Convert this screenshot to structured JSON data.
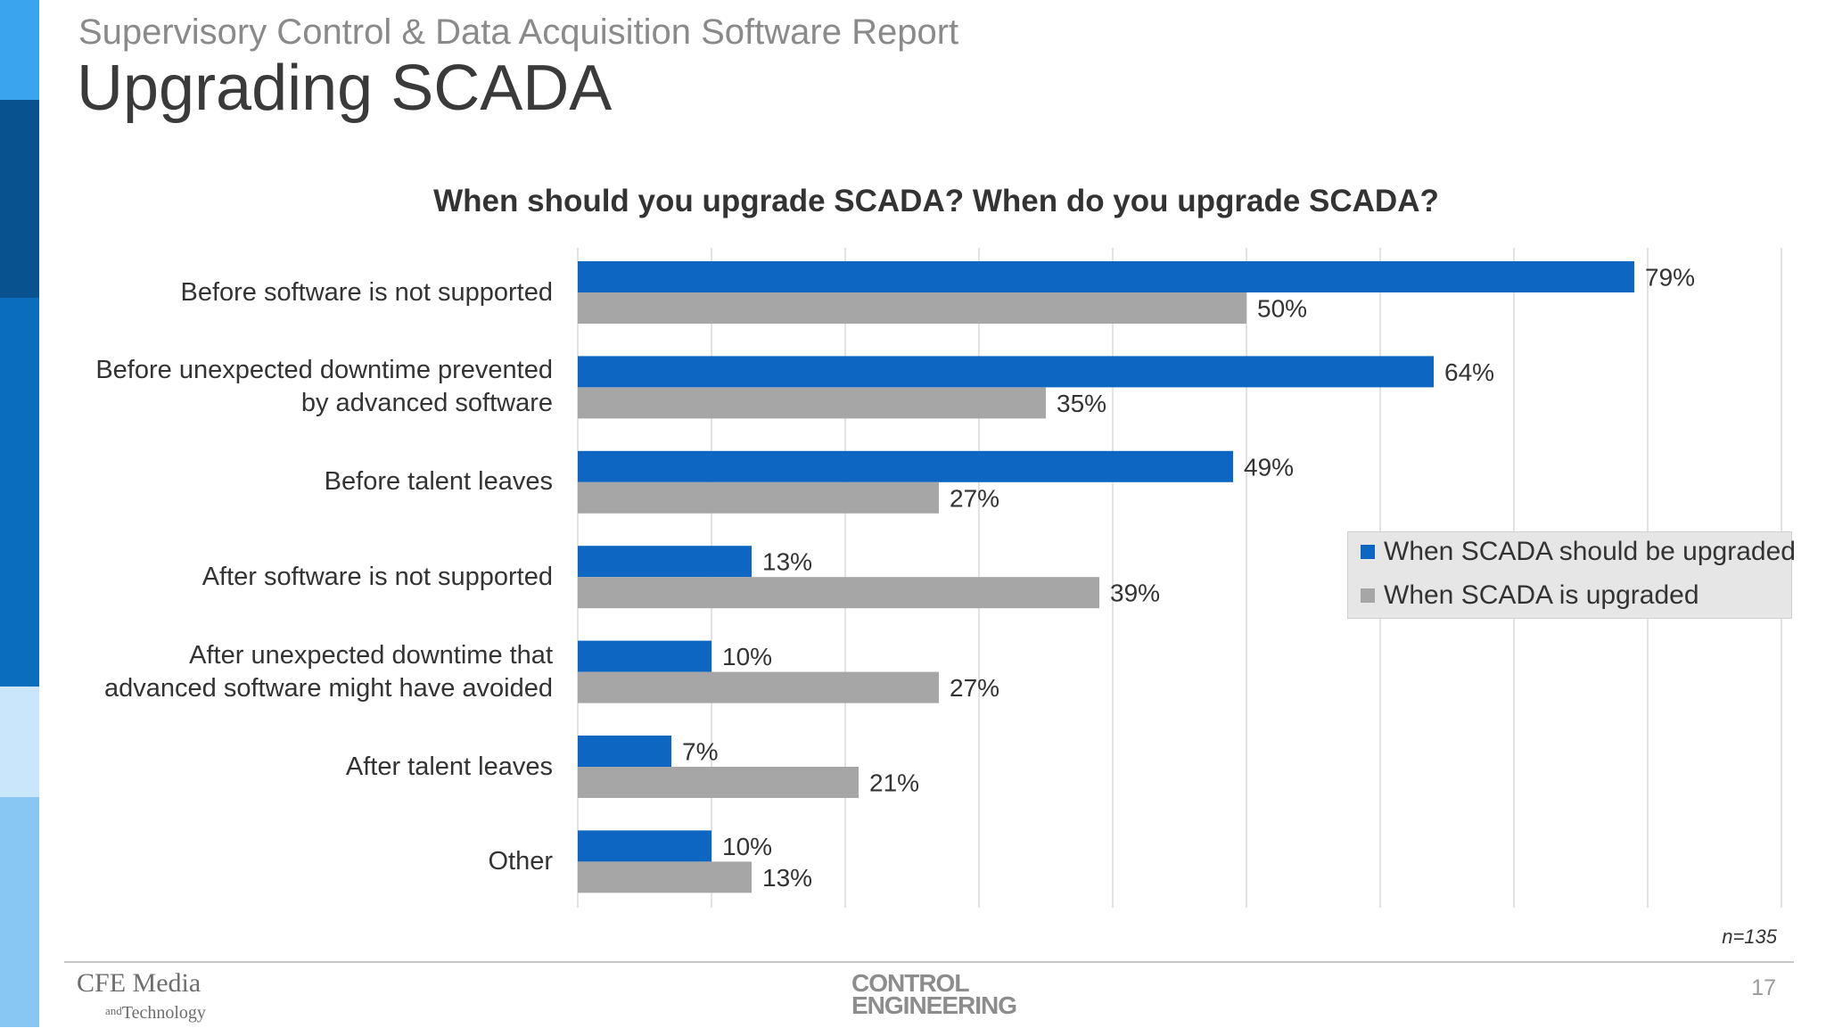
{
  "header": {
    "supertitle": "Supervisory Control & Data Acquisition Software Report",
    "title": "Upgrading SCADA"
  },
  "colors": {
    "series_should": "#0d66c2",
    "series_is": "#a6a6a6",
    "sidebar": [
      "#3ba4ee",
      "#07528f",
      "#0b6dbd",
      "#c9e6fb",
      "#88c7f4"
    ]
  },
  "chart_data": {
    "type": "bar",
    "orientation": "horizontal",
    "title": "When should you upgrade SCADA? When do you upgrade SCADA?",
    "categories": [
      "Before software is not supported",
      "Before unexpected downtime prevented\nby advanced software",
      "Before talent leaves",
      "After software is not supported",
      "After unexpected downtime that\nadvanced software might have avoided",
      "After talent leaves",
      "Other"
    ],
    "series": [
      {
        "name": "When SCADA should be upgraded",
        "values": [
          79,
          64,
          49,
          13,
          10,
          7,
          10
        ]
      },
      {
        "name": "When SCADA is upgraded",
        "values": [
          50,
          35,
          27,
          39,
          27,
          21,
          13
        ]
      }
    ],
    "value_suffix": "%",
    "xlim": [
      0,
      90
    ],
    "grid": "vertical",
    "legend_position": "right"
  },
  "note": "n=135",
  "footer": {
    "logo_left_line1": "CFE Media",
    "logo_left_and": "and",
    "logo_left_line2": "Technology",
    "logo_center_line1": "CONTROL",
    "logo_center_line2": "ENGINEERING",
    "page_number": "17"
  }
}
